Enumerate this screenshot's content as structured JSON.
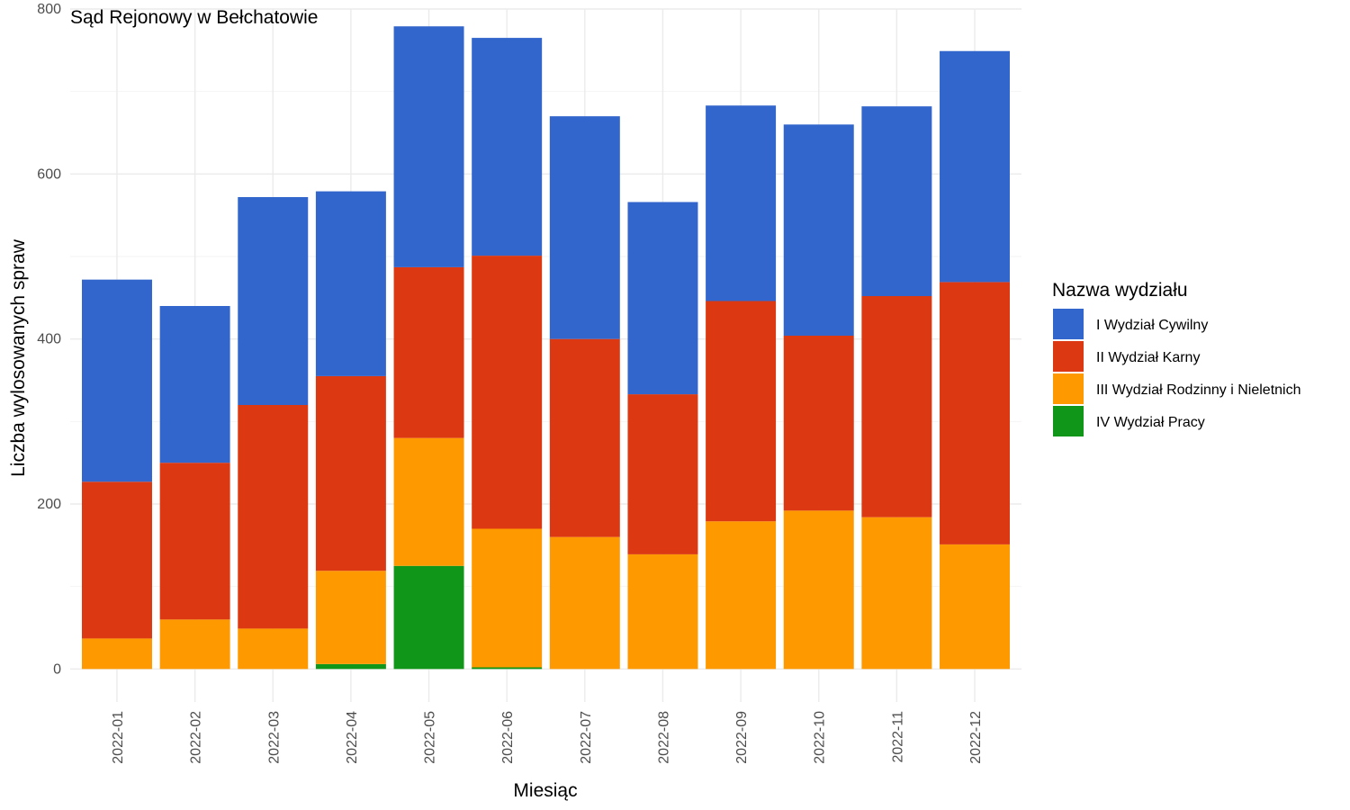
{
  "chart_data": {
    "type": "bar",
    "stacked": true,
    "title": "Sąd Rejonowy w Bełchatowie",
    "xlabel": "Miesiąc",
    "ylabel": "Liczba wylosowanych spraw",
    "ylim": [
      -40,
      800
    ],
    "yticks": [
      0,
      200,
      400,
      600,
      800
    ],
    "grid": true,
    "legend": {
      "title": "Nazwa wydziału",
      "position": "right"
    },
    "categories": [
      "2022-01",
      "2022-02",
      "2022-03",
      "2022-04",
      "2022-05",
      "2022-06",
      "2022-07",
      "2022-08",
      "2022-09",
      "2022-10",
      "2022-11",
      "2022-12"
    ],
    "series": [
      {
        "name": "IV Wydział Pracy",
        "color": "#109618",
        "values": [
          0,
          0,
          0,
          6,
          125,
          2,
          0,
          0,
          0,
          0,
          0,
          0
        ]
      },
      {
        "name": "III Wydział Rodzinny i Nieletnich",
        "color": "#ff9900",
        "values": [
          37,
          60,
          49,
          113,
          155,
          168,
          160,
          139,
          179,
          192,
          184,
          151
        ]
      },
      {
        "name": "II Wydział Karny",
        "color": "#dc3912",
        "values": [
          190,
          190,
          271,
          236,
          207,
          331,
          240,
          194,
          267,
          212,
          268,
          318
        ]
      },
      {
        "name": "I Wydział Cywilny",
        "color": "#3366cc",
        "values": [
          245,
          190,
          252,
          224,
          292,
          264,
          270,
          233,
          237,
          256,
          230,
          280
        ]
      }
    ]
  }
}
